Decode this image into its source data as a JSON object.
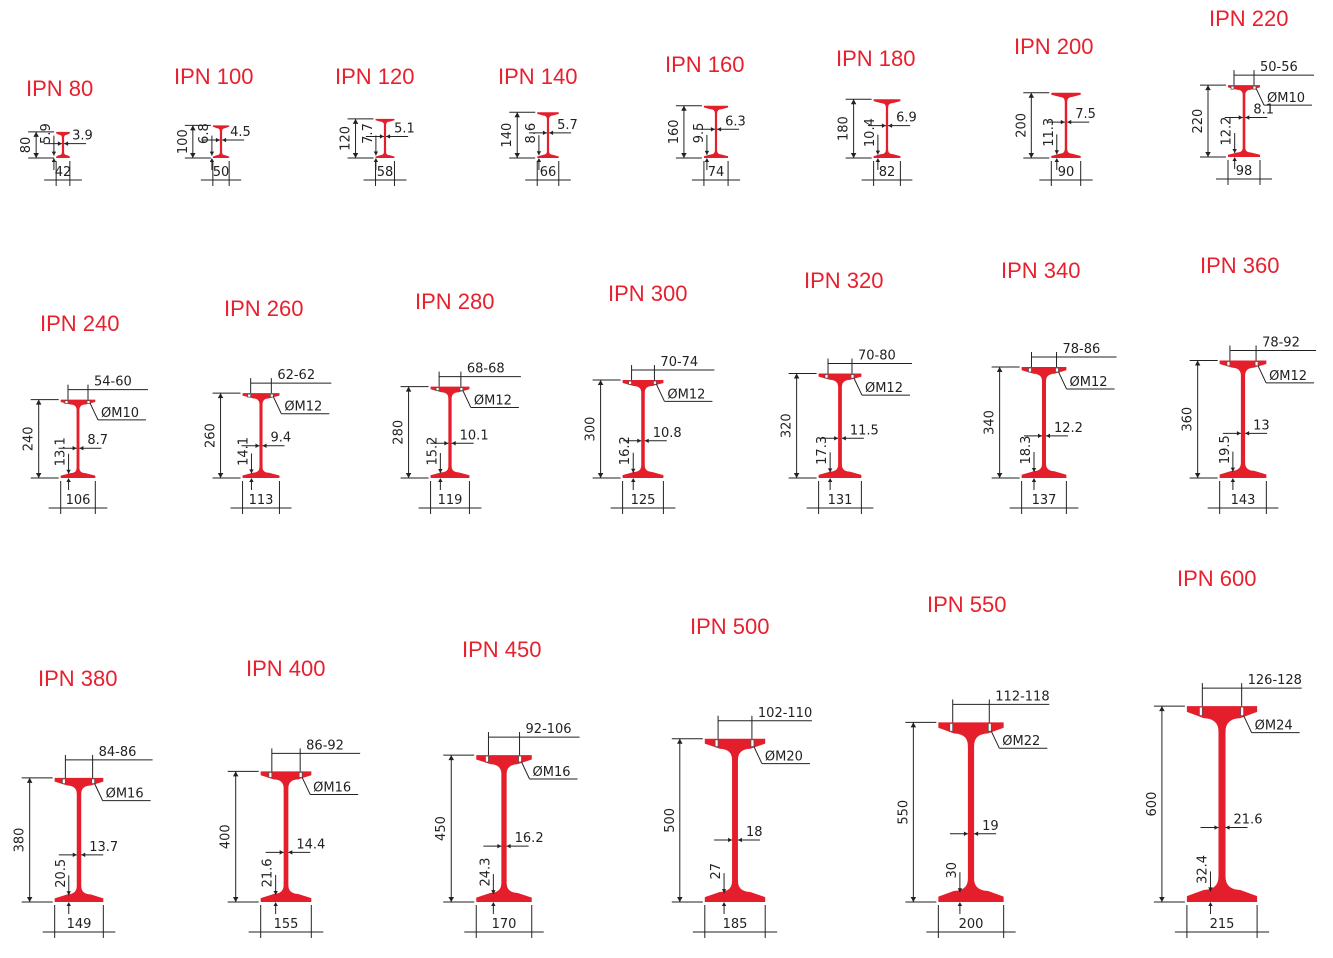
{
  "colors": {
    "beam": "#e41e2b",
    "title": "#e8202e",
    "lines": "#222222"
  },
  "profiles": [
    {
      "name": "IPN 80",
      "h": "80",
      "b": "42",
      "tw": "3.9",
      "tf": "5.9",
      "g": "",
      "bolt": ""
    },
    {
      "name": "IPN 100",
      "h": "100",
      "b": "50",
      "tw": "4.5",
      "tf": "6.8",
      "g": "",
      "bolt": ""
    },
    {
      "name": "IPN 120",
      "h": "120",
      "b": "58",
      "tw": "5.1",
      "tf": "7.7",
      "g": "",
      "bolt": ""
    },
    {
      "name": "IPN 140",
      "h": "140",
      "b": "66",
      "tw": "5.7",
      "tf": "8.6",
      "g": "",
      "bolt": ""
    },
    {
      "name": "IPN 160",
      "h": "160",
      "b": "74",
      "tw": "6.3",
      "tf": "9.5",
      "g": "",
      "bolt": ""
    },
    {
      "name": "IPN 180",
      "h": "180",
      "b": "82",
      "tw": "6.9",
      "tf": "10.4",
      "g": "",
      "bolt": ""
    },
    {
      "name": "IPN 200",
      "h": "200",
      "b": "90",
      "tw": "7.5",
      "tf": "11.3",
      "g": "",
      "bolt": ""
    },
    {
      "name": "IPN 220",
      "h": "220",
      "b": "98",
      "tw": "8.1",
      "tf": "12.2",
      "g": "50-56",
      "bolt": "ØM10"
    },
    {
      "name": "IPN 240",
      "h": "240",
      "b": "106",
      "tw": "8.7",
      "tf": "13.1",
      "g": "54-60",
      "bolt": "ØM10"
    },
    {
      "name": "IPN 260",
      "h": "260",
      "b": "113",
      "tw": "9.4",
      "tf": "14.1",
      "g": "62-62",
      "bolt": "ØM12"
    },
    {
      "name": "IPN 280",
      "h": "280",
      "b": "119",
      "tw": "10.1",
      "tf": "15.2",
      "g": "68-68",
      "bolt": "ØM12"
    },
    {
      "name": "IPN 300",
      "h": "300",
      "b": "125",
      "tw": "10.8",
      "tf": "16.2",
      "g": "70-74",
      "bolt": "ØM12"
    },
    {
      "name": "IPN 320",
      "h": "320",
      "b": "131",
      "tw": "11.5",
      "tf": "17.3",
      "g": "70-80",
      "bolt": "ØM12"
    },
    {
      "name": "IPN 340",
      "h": "340",
      "b": "137",
      "tw": "12.2",
      "tf": "18.3",
      "g": "78-86",
      "bolt": "ØM12"
    },
    {
      "name": "IPN 360",
      "h": "360",
      "b": "143",
      "tw": "13",
      "tf": "19.5",
      "g": "78-92",
      "bolt": "ØM12"
    },
    {
      "name": "IPN 380",
      "h": "380",
      "b": "149",
      "tw": "13.7",
      "tf": "20.5",
      "g": "84-86",
      "bolt": "ØM16"
    },
    {
      "name": "IPN 400",
      "h": "400",
      "b": "155",
      "tw": "14.4",
      "tf": "21.6",
      "g": "86-92",
      "bolt": "ØM16"
    },
    {
      "name": "IPN 450",
      "h": "450",
      "b": "170",
      "tw": "16.2",
      "tf": "24.3",
      "g": "92-106",
      "bolt": "ØM16"
    },
    {
      "name": "IPN 500",
      "h": "500",
      "b": "185",
      "tw": "18",
      "tf": "27",
      "g": "102-110",
      "bolt": "ØM20"
    },
    {
      "name": "IPN 550",
      "h": "550",
      "b": "200",
      "tw": "19",
      "tf": "30",
      "g": "112-118",
      "bolt": "ØM22"
    },
    {
      "name": "IPN 600",
      "h": "600",
      "b": "215",
      "tw": "21.6",
      "tf": "32.4",
      "g": "126-128",
      "bolt": "ØM24"
    }
  ]
}
